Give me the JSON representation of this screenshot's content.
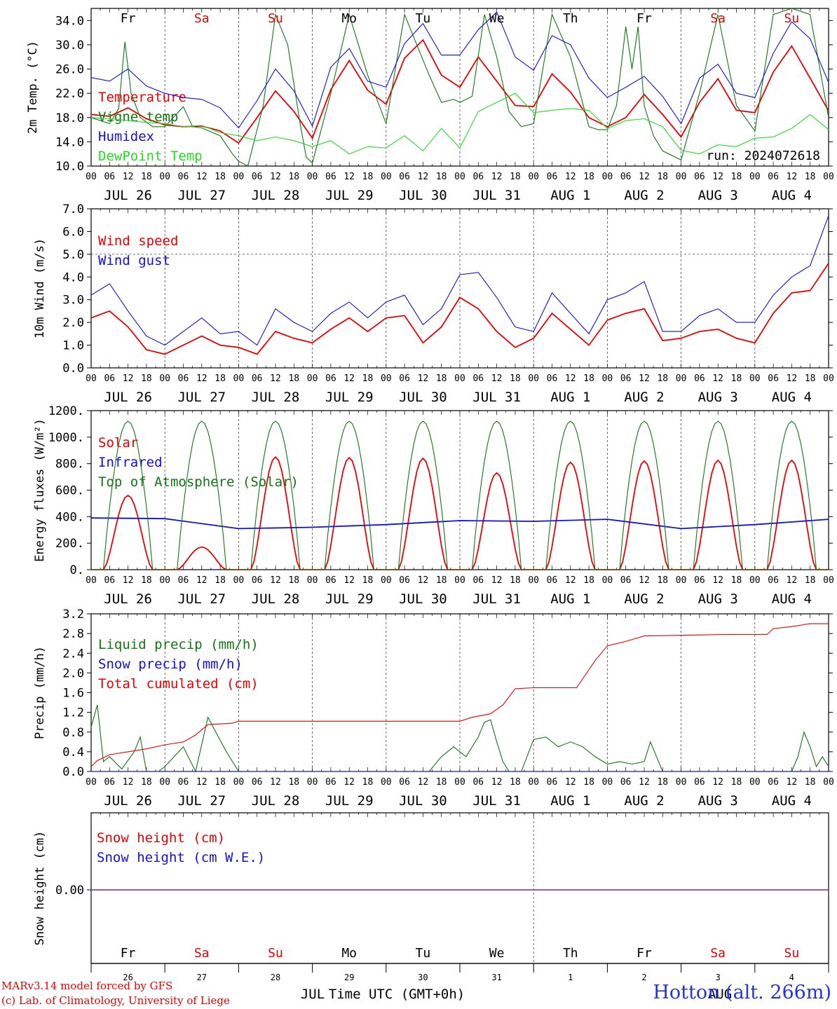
{
  "station": "Hotton (alt. 266m)",
  "credits": [
    "MARv3.14 model forced by GFS",
    "(c) Lab. of Climatology, University of Liege"
  ],
  "run_label": "run: 2024072618",
  "time_axis_label": "Time UTC (GMT+0h)",
  "month_labels": [
    "JUL",
    "AUG"
  ],
  "date_labels": [
    "JUL 26",
    "JUL 27",
    "JUL 28",
    "JUL 29",
    "JUL 30",
    "JUL 31",
    "AUG  1",
    "AUG  2",
    "AUG  3",
    "AUG  4"
  ],
  "weekdays": [
    "Fr",
    "Sa",
    "Su",
    "Mo",
    "Tu",
    "We",
    "Th",
    "Fr",
    "Sa",
    "Su"
  ],
  "day_numbers": [
    "26",
    "27",
    "28",
    "29",
    "30",
    "31",
    "1",
    "2",
    "3",
    "4"
  ],
  "hour_labels": [
    "00",
    "06",
    "12",
    "18"
  ],
  "colors": {
    "red": "#ee0000",
    "green": "#117711",
    "blue": "#1111dd",
    "lightgreen": "#22dd22",
    "purple": "#8844aa",
    "weekend": "#ee0000"
  },
  "chart_data": [
    {
      "type": "line",
      "ylabel": "2m Temp. (°C)",
      "ylim": [
        10,
        36
      ],
      "yticks": [
        "10.0",
        "14.0",
        "18.0",
        "22.0",
        "26.0",
        "30.0",
        "34.0"
      ],
      "x_unit": "hours since JUL 26 00 UTC",
      "series": [
        {
          "name": "Temperature",
          "color": "red",
          "x": [
            0,
            6,
            12,
            18,
            24,
            30,
            36,
            42,
            48,
            54,
            60,
            66,
            72,
            78,
            84,
            90,
            96,
            102,
            108,
            114,
            120,
            126,
            132,
            138,
            144,
            150,
            156,
            162,
            168,
            174,
            180,
            186,
            192,
            198,
            204,
            210,
            216,
            222,
            228,
            234,
            240
          ],
          "y": [
            18.5,
            18.2,
            19.6,
            17.8,
            16.8,
            16.5,
            16.6,
            15.8,
            13.8,
            18,
            22.4,
            19,
            14.6,
            22.6,
            27.4,
            22.5,
            20.2,
            27.8,
            30.8,
            25,
            23,
            28,
            24,
            20,
            19.8,
            25.2,
            22.2,
            18,
            16.5,
            18,
            21.8,
            18.5,
            14.8,
            20.5,
            24.4,
            19.2,
            18.8,
            25.5,
            29.8,
            24.5,
            19.1
          ]
        },
        {
          "name": "Vigne temp",
          "color": "green",
          "x": [
            0,
            6,
            9,
            11,
            13,
            16,
            20,
            24,
            30,
            33,
            36,
            42,
            46,
            48,
            51,
            56,
            60,
            64,
            68,
            70,
            72,
            78,
            84,
            90,
            96,
            102,
            106,
            110,
            114,
            118,
            120,
            124,
            128,
            132,
            136,
            140,
            144,
            150,
            156,
            162,
            165,
            168,
            171,
            174,
            176,
            178,
            180,
            183,
            186,
            192,
            198,
            204,
            210,
            216,
            222,
            228,
            234,
            240
          ],
          "y": [
            18,
            17,
            19.5,
            30.5,
            22,
            18,
            16.5,
            16.5,
            19.8,
            16.5,
            16.3,
            15,
            12,
            10.8,
            10,
            20,
            35,
            30,
            17,
            11.5,
            10.5,
            22,
            35,
            25,
            17,
            35,
            30,
            25,
            20.5,
            21,
            20.5,
            21.5,
            35,
            28,
            19,
            16.5,
            17,
            35,
            28,
            16.5,
            16,
            16,
            20,
            33,
            26,
            33,
            20,
            15,
            12.5,
            11,
            22,
            35,
            20,
            15.8,
            35,
            36,
            35,
            18
          ]
        },
        {
          "name": "Humidex",
          "color": "blue",
          "x": [
            0,
            6,
            12,
            18,
            24,
            30,
            36,
            42,
            48,
            54,
            60,
            66,
            72,
            78,
            84,
            90,
            96,
            102,
            108,
            114,
            120,
            126,
            132,
            138,
            144,
            150,
            156,
            162,
            168,
            174,
            180,
            186,
            192,
            198,
            204,
            210,
            216,
            222,
            228,
            234,
            240
          ],
          "y": [
            24.6,
            24,
            26,
            23.2,
            22,
            21.3,
            21,
            19.6,
            16.3,
            20.8,
            26,
            22.4,
            16.6,
            26.3,
            29.4,
            24,
            23,
            30.2,
            33.5,
            28.3,
            28.3,
            32.5,
            35.4,
            28,
            25.8,
            31.5,
            30,
            24.5,
            21.3,
            23,
            24.8,
            21.5,
            17,
            24.5,
            26.8,
            22,
            21.3,
            28.6,
            33.8,
            31,
            23.8
          ]
        },
        {
          "name": "DewPoint Temp",
          "color": "lightgreen",
          "x": [
            0,
            6,
            12,
            18,
            24,
            30,
            36,
            42,
            48,
            54,
            60,
            66,
            72,
            78,
            84,
            90,
            96,
            102,
            108,
            114,
            120,
            126,
            132,
            138,
            144,
            150,
            156,
            162,
            168,
            174,
            180,
            186,
            192,
            198,
            204,
            210,
            216,
            222,
            228,
            234,
            240
          ],
          "y": [
            18,
            17.8,
            17.5,
            17.2,
            17,
            16.5,
            16.7,
            15.5,
            15,
            14.2,
            14.8,
            14.2,
            13.2,
            14.2,
            12,
            13.2,
            13,
            15,
            12.5,
            16.2,
            13,
            19,
            20.5,
            22,
            18.8,
            19.2,
            19.5,
            19.2,
            16.2,
            17.5,
            17.8,
            16.5,
            12.6,
            12,
            13.5,
            13.2,
            14.6,
            14.8,
            16.2,
            18.5,
            16
          ]
        }
      ]
    },
    {
      "type": "line",
      "ylabel": "10m Wind (m/s)",
      "ylim": [
        0,
        7
      ],
      "yticks": [
        "0.0",
        "1.0",
        "2.0",
        "3.0",
        "4.0",
        "5.0",
        "6.0",
        "7.0"
      ],
      "x_unit": "hours since JUL 26 00 UTC",
      "series": [
        {
          "name": "Wind speed",
          "color": "red",
          "x": [
            0,
            6,
            12,
            18,
            24,
            30,
            36,
            42,
            48,
            54,
            60,
            66,
            72,
            78,
            84,
            90,
            96,
            102,
            108,
            114,
            120,
            126,
            132,
            138,
            144,
            150,
            156,
            162,
            168,
            174,
            180,
            186,
            192,
            198,
            204,
            210,
            216,
            222,
            228,
            234,
            240
          ],
          "y": [
            2.2,
            2.5,
            1.8,
            0.8,
            0.6,
            1.0,
            1.4,
            1.0,
            0.9,
            0.6,
            1.6,
            1.3,
            1.1,
            1.7,
            2.2,
            1.6,
            2.2,
            2.3,
            1.1,
            1.8,
            3.1,
            2.6,
            1.6,
            0.9,
            1.3,
            2.4,
            1.7,
            1.0,
            2.1,
            2.4,
            2.6,
            1.2,
            1.3,
            1.6,
            1.7,
            1.3,
            1.1,
            2.4,
            3.3,
            3.4,
            4.6
          ]
        },
        {
          "name": "Wind gust",
          "color": "blue",
          "x": [
            0,
            6,
            12,
            18,
            24,
            30,
            36,
            42,
            48,
            54,
            60,
            66,
            72,
            78,
            84,
            90,
            96,
            102,
            108,
            114,
            120,
            126,
            132,
            138,
            144,
            150,
            156,
            162,
            168,
            174,
            180,
            186,
            192,
            198,
            204,
            210,
            216,
            222,
            228,
            234,
            240
          ],
          "y": [
            3.2,
            3.7,
            2.5,
            1.4,
            1.0,
            1.6,
            2.2,
            1.5,
            1.6,
            1.0,
            2.6,
            2.0,
            1.6,
            2.4,
            2.9,
            2.2,
            2.9,
            3.2,
            1.9,
            2.6,
            4.1,
            4.2,
            3.1,
            1.8,
            1.6,
            3.3,
            2.4,
            1.5,
            3.0,
            3.3,
            3.8,
            1.6,
            1.6,
            2.3,
            2.6,
            2.0,
            2.0,
            3.2,
            4.0,
            4.5,
            6.7
          ]
        }
      ],
      "reference_line": 5.0
    },
    {
      "type": "line",
      "ylabel": "Energy fluxes (W/m²)",
      "ylim": [
        0,
        1200
      ],
      "yticks": [
        "0.",
        "200.",
        "400.",
        "600.",
        "800.",
        "1000.",
        "1200."
      ],
      "x_unit": "hours since JUL 26 00 UTC",
      "series": [
        {
          "name": "Solar",
          "color": "red",
          "peaks": [
            560,
            170,
            850,
            845,
            840,
            730,
            810,
            820,
            825,
            825
          ]
        },
        {
          "name": "Infrared",
          "color": "blue",
          "x": [
            0,
            24,
            48,
            72,
            96,
            120,
            144,
            168,
            192,
            216,
            240
          ],
          "y": [
            390,
            385,
            310,
            320,
            340,
            370,
            365,
            380,
            310,
            340,
            380
          ]
        },
        {
          "name": "Top of Atmosphere (Solar)",
          "color": "green",
          "peak": 1120
        }
      ]
    },
    {
      "type": "line",
      "ylabel": "Precip (mm/h)",
      "ylim": [
        0,
        3.2
      ],
      "yticks": [
        "0.0",
        "0.4",
        "0.8",
        "1.2",
        "1.6",
        "2.0",
        "2.4",
        "2.8",
        "3.2"
      ],
      "x_unit": "hours since JUL 26 00 UTC",
      "series": [
        {
          "name": "Liquid precip (mm/h)",
          "color": "green",
          "x": [
            0,
            2,
            4,
            6,
            10,
            14,
            16,
            18,
            22,
            24,
            30,
            34,
            38,
            44,
            48,
            50,
            110,
            114,
            118,
            122,
            126,
            128,
            130,
            132,
            134,
            136,
            140,
            144,
            148,
            152,
            156,
            160,
            164,
            168,
            172,
            176,
            180,
            182,
            186,
            190,
            228,
            230,
            232,
            234,
            236,
            238,
            240
          ],
          "y": [
            0.9,
            1.35,
            0.2,
            0.3,
            0.05,
            0.4,
            0.7,
            0.0,
            0.0,
            0.1,
            0.5,
            0.0,
            1.1,
            0.4,
            0.0,
            0.0,
            0.0,
            0.3,
            0.5,
            0.3,
            0.7,
            1.0,
            1.05,
            0.6,
            0.2,
            0.0,
            0.0,
            0.65,
            0.7,
            0.5,
            0.6,
            0.5,
            0.3,
            0.15,
            0.2,
            0.15,
            0.2,
            0.6,
            0.0,
            0.0,
            0.0,
            0.3,
            0.8,
            0.5,
            0.1,
            0.3,
            0.1
          ]
        },
        {
          "name": "Snow precip (mm/h)",
          "color": "blue",
          "x": [
            0,
            240
          ],
          "y": [
            0,
            0
          ]
        },
        {
          "name": "Total cumulated (cm)",
          "color": "red",
          "x": [
            0,
            2,
            6,
            12,
            18,
            24,
            30,
            34,
            38,
            46,
            48,
            120,
            124,
            130,
            134,
            138,
            144,
            158,
            164,
            168,
            174,
            180,
            206,
            220,
            222,
            228,
            234,
            240
          ],
          "y": [
            0.1,
            0.22,
            0.34,
            0.4,
            0.46,
            0.54,
            0.6,
            0.74,
            0.95,
            0.98,
            1.02,
            1.02,
            1.1,
            1.17,
            1.35,
            1.68,
            1.7,
            1.7,
            2.25,
            2.55,
            2.64,
            2.75,
            2.78,
            2.78,
            2.9,
            2.94,
            3.0,
            3.0
          ]
        }
      ]
    },
    {
      "type": "line",
      "ylabel": "Snow height (cm)",
      "yticks": [
        "0.00"
      ],
      "series": [
        {
          "name": "Snow height (cm)",
          "color": "red",
          "x": [
            0,
            240
          ],
          "y": [
            0,
            0
          ]
        },
        {
          "name": "Snow height (cm W.E.)",
          "color": "blue",
          "x": [
            0,
            240
          ],
          "y": [
            0,
            0
          ]
        }
      ]
    }
  ]
}
